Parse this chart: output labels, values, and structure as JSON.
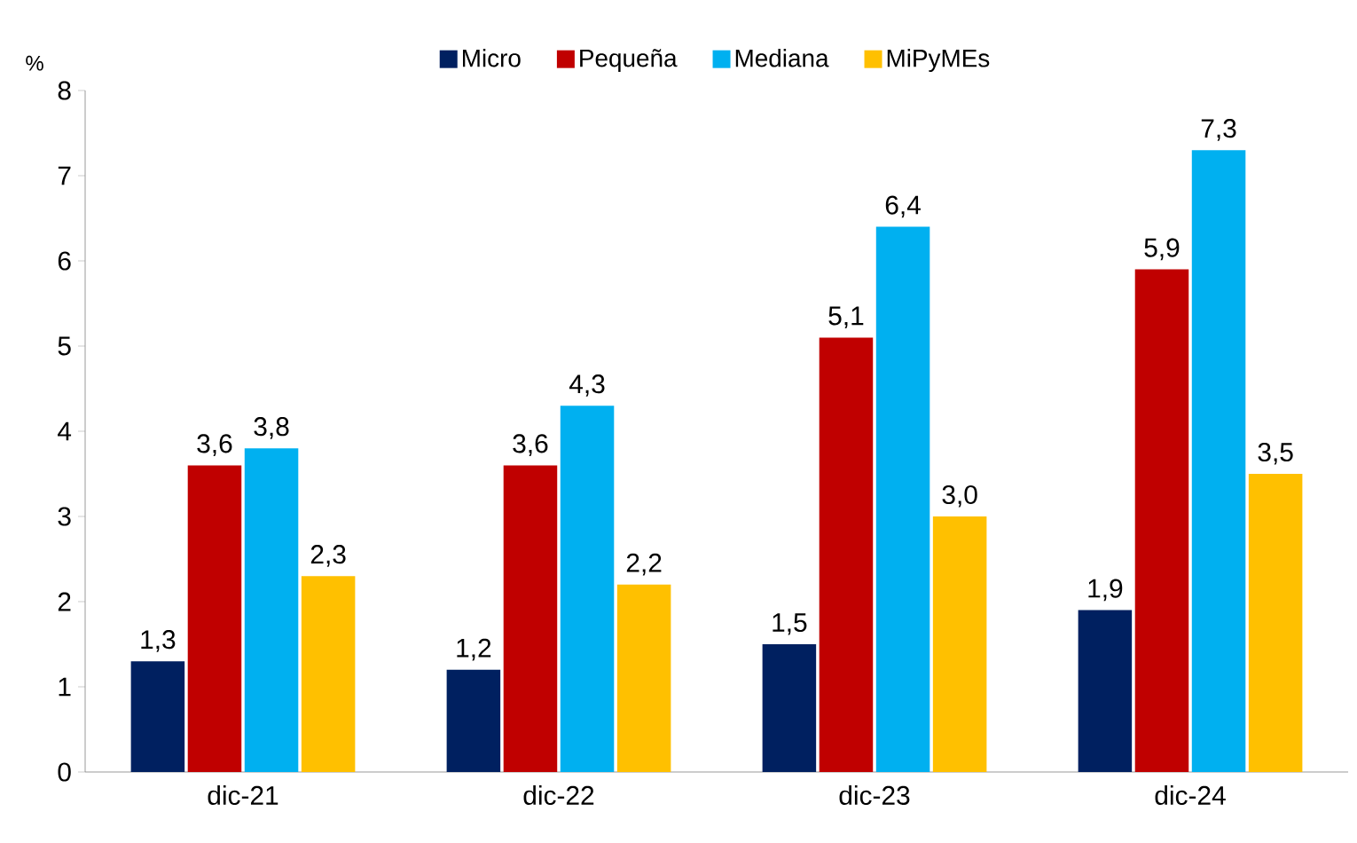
{
  "chart_data": {
    "type": "bar",
    "ylabel": "%",
    "categories": [
      "dic-21",
      "dic-22",
      "dic-23",
      "dic-24"
    ],
    "series": [
      {
        "name": "Micro",
        "color": "#002060",
        "values": [
          1.3,
          1.2,
          1.5,
          1.9
        ],
        "value_labels": [
          "1,3",
          "1,2",
          "1,5",
          "1,9"
        ]
      },
      {
        "name": "Pequeña",
        "color": "#c00000",
        "values": [
          3.6,
          3.6,
          5.1,
          5.9
        ],
        "value_labels": [
          "3,6",
          "3,6",
          "5,1",
          "5,9"
        ]
      },
      {
        "name": "Mediana",
        "color": "#00b0f0",
        "values": [
          3.8,
          4.3,
          6.4,
          7.3
        ],
        "value_labels": [
          "3,8",
          "4,3",
          "6,4",
          "7,3"
        ]
      },
      {
        "name": "MiPyMEs",
        "color": "#ffc000",
        "values": [
          2.3,
          2.2,
          3.0,
          3.5
        ],
        "value_labels": [
          "2,3",
          "2,2",
          "3,0",
          "3,5"
        ]
      }
    ],
    "ylim": [
      0,
      8
    ],
    "yticks": [
      0,
      1,
      2,
      3,
      4,
      5,
      6,
      7,
      8
    ],
    "grid": false,
    "legend": "top"
  }
}
